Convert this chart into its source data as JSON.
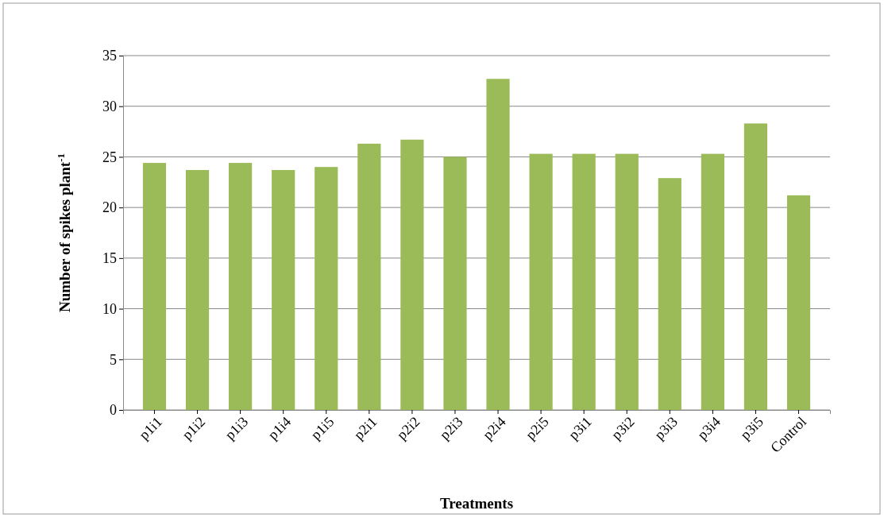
{
  "chart_data": {
    "type": "bar",
    "xlabel": "Treatments",
    "ylabel": "Number of spikes plant$^{-1}$",
    "categories": [
      "p1i1",
      "p1i2",
      "p1i3",
      "p1i4",
      "p1i5",
      "p2i1",
      "p2i2",
      "p2i3",
      "p2i4",
      "p2i5",
      "p3i1",
      "p3i2",
      "p3i3",
      "p3i4",
      "p3i5",
      "Control"
    ],
    "values": [
      24.4,
      23.7,
      24.4,
      23.7,
      24.0,
      26.3,
      26.7,
      25.0,
      32.7,
      25.3,
      25.3,
      25.3,
      22.9,
      25.3,
      28.3,
      21.2
    ],
    "color": "#9bbb59",
    "ylim": [
      0,
      35
    ],
    "yticks": [
      0,
      5,
      10,
      15,
      20,
      25,
      30,
      35
    ],
    "grid": "y"
  }
}
